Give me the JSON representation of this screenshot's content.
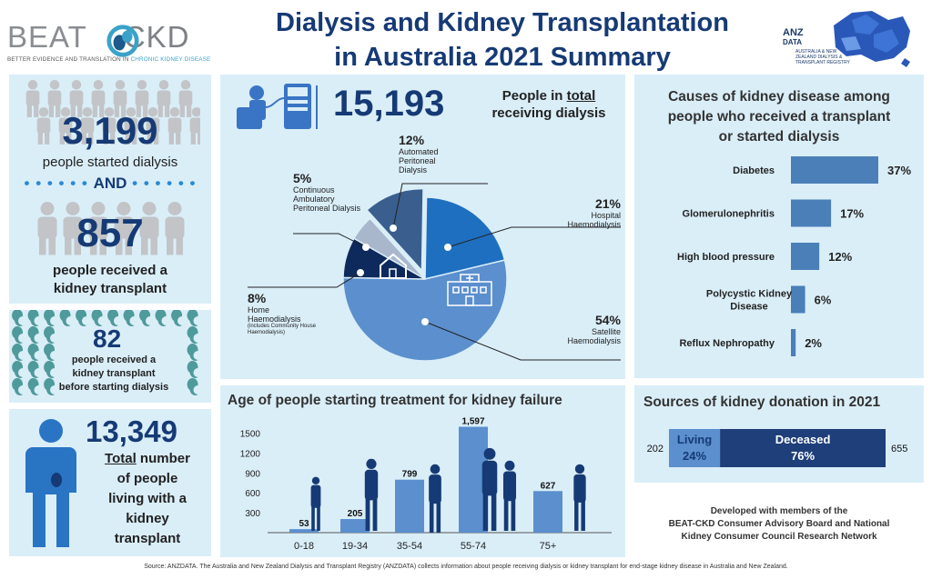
{
  "header": {
    "brand_left": "BEAT",
    "brand_right": "CKD",
    "brand_tagline_plain": "BETTER EVIDENCE AND TRANSLATION IN ",
    "brand_tagline_accent": "CHRONIC KIDNEY DISEASE",
    "title_line1": "Dialysis and Kidney Transplantation",
    "title_line2": "in Australia 2021 Summary",
    "anz_line1": "ANZ",
    "anz_line2": "DATA",
    "anz_line3": "AUSTRALIA & NEW ZEALAND DIALYSIS & TRANSPLANT REGISTRY"
  },
  "left_panel": {
    "started_number": "3,199",
    "started_text": "people started dialysis",
    "and_text": "AND",
    "transplant_number": "857",
    "transplant_text_line1": "people received a",
    "transplant_text_line2": "kidney transplant",
    "preemptive_number": "82",
    "preemptive_line1": "people received a",
    "preemptive_line2": "kidney transplant",
    "preemptive_line3": "before starting dialysis",
    "living_number": "13,349",
    "living_line1_u": "Total",
    "living_line1_rest": " number",
    "living_line2": "of people",
    "living_line3": "living with a",
    "living_line4": "kidney",
    "living_line5": "transplant"
  },
  "dialysis": {
    "total_number": "15,193",
    "total_text_line1_pre": "People in ",
    "total_text_line1_u": "total",
    "total_text_line2": "receiving dialysis"
  },
  "causes": {
    "title_line1": "Causes of kidney disease among",
    "title_line2": "people who received a transplant",
    "title_line3": "or started dialysis"
  },
  "age": {
    "title": "Age of people starting treatment for kidney failure"
  },
  "sources": {
    "title": "Sources of kidney donation in 2021"
  },
  "chart_data": [
    {
      "type": "pie",
      "slices": [
        {
          "label": "Hospital Haemodialysis",
          "value": 21,
          "pct_label": "21%",
          "color": "#1f6fc0"
        },
        {
          "label": "Satellite Haemodialysis",
          "value": 54,
          "pct_label": "54%",
          "color": "#5b8fce"
        },
        {
          "label": "Home Haemodialysis",
          "value": 8,
          "pct_label": "8%",
          "note": "(includes Community House Haemodialysis)",
          "color": "#0e2a5c"
        },
        {
          "label": "Continuous Ambulatory Peritoneal Dialysis",
          "value": 5,
          "pct_label": "5%",
          "color": "#a9b7cc"
        },
        {
          "label": "Automated Peritoneal Dialysis",
          "value": 12,
          "pct_label": "12%",
          "color": "#3a5f8f"
        }
      ]
    },
    {
      "type": "bar",
      "orientation": "horizontal",
      "categories": [
        "Diabetes",
        "Glomerulonephritis",
        "High blood pressure",
        "Polycystic Kidney Disease",
        "Reflux Nephropathy"
      ],
      "values": [
        37,
        17,
        12,
        6,
        2
      ],
      "value_labels": [
        "37%",
        "17%",
        "12%",
        "6%",
        "2%"
      ],
      "color": "#4a7fb8",
      "xlim": [
        0,
        37
      ]
    },
    {
      "type": "bar",
      "categories": [
        "0-18",
        "19-34",
        "35-54",
        "55-74",
        "75+"
      ],
      "values": [
        53,
        205,
        799,
        1597,
        627
      ],
      "value_labels": [
        "53",
        "205",
        "799",
        "1,597",
        "627"
      ],
      "yticks": [
        300,
        600,
        900,
        1200,
        1500
      ],
      "ylim": [
        0,
        1700
      ],
      "color": "#5b8fce"
    },
    {
      "type": "bar",
      "orientation": "stacked-horizontal",
      "segments": [
        {
          "label": "Living",
          "value": 202,
          "pct_label": "24%",
          "count_label": "202",
          "color": "#5b8fce"
        },
        {
          "label": "Deceased",
          "value": 655,
          "pct_label": "76%",
          "count_label": "655",
          "color": "#1f3f7a"
        }
      ]
    }
  ],
  "credit": {
    "line1": "Developed with members of the",
    "line2": "BEAT-CKD Consumer Advisory Board and  National",
    "line3": "Kidney Consumer Council Research Network"
  },
  "footer": {
    "source": "Source: ANZDATA. The Australia and New Zealand Dialysis and Transplant Registry (ANZDATA) collects information about people receiving dialysis or kidney transplant for end-stage kidney disease in Australia and New Zealand."
  }
}
